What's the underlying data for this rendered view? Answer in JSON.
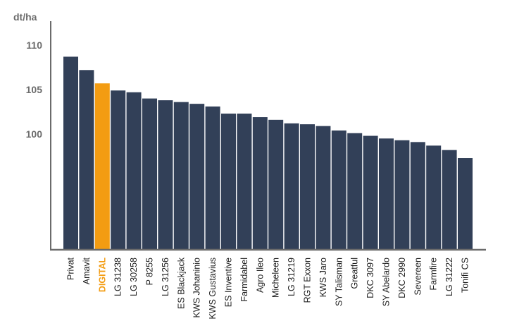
{
  "chart_data": {
    "type": "bar",
    "ylabel": "dt/ha",
    "y_ticks": [
      "100",
      "105",
      "110"
    ],
    "ylim": [
      87,
      112
    ],
    "categories": [
      "Privat",
      "Amavit",
      "DIGITAL",
      "LG 31238",
      "LG 30258",
      "P 8255",
      "LG 31256",
      "ES Blackjack",
      "KWS Johaninio",
      "KWS Gustavius",
      "ES Inventive",
      "Farmidabel",
      "Agro Ileo",
      "Micheleen",
      "LG 31219",
      "RGT Exxon",
      "KWS Jaro",
      "SY Talisman",
      "Greatful",
      "DKC 3097",
      "SY Abelardo",
      "DKC 2990",
      "Severeen",
      "Farmfire",
      "LG 31222",
      "Tonifi CS"
    ],
    "values": [
      108.7,
      107.2,
      105.7,
      104.9,
      104.7,
      104.0,
      103.8,
      103.6,
      103.4,
      103.1,
      102.3,
      102.3,
      101.9,
      101.6,
      101.2,
      101.1,
      100.9,
      100.4,
      100.1,
      99.8,
      99.5,
      99.3,
      99.1,
      98.7,
      98.2,
      97.3
    ],
    "highlight": "DIGITAL",
    "grid": false,
    "colors": {
      "bar": "#324058",
      "highlight": "#f39c12",
      "axis": "#6b6b6b",
      "tick_text": "#6b6b6b",
      "category_text": "#1f1f1f"
    }
  }
}
